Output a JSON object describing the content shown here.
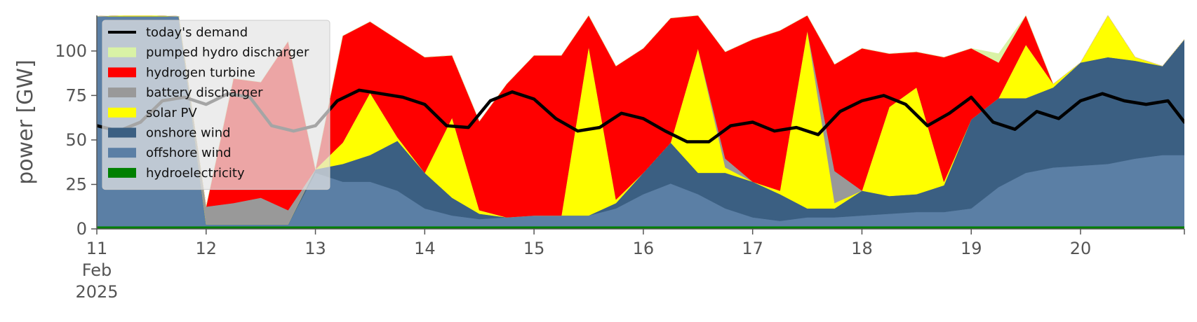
{
  "chart_data": {
    "type": "area",
    "ylabel": "power [GW]",
    "xlabel": "",
    "ylim": [
      0,
      120
    ],
    "yticks": [
      0,
      25,
      50,
      75,
      100
    ],
    "xticks": [
      {
        "day": 0,
        "label": "11"
      },
      {
        "day": 1,
        "label": "12"
      },
      {
        "day": 2,
        "label": "13"
      },
      {
        "day": 3,
        "label": "14"
      },
      {
        "day": 4,
        "label": "15"
      },
      {
        "day": 5,
        "label": "16"
      },
      {
        "day": 6,
        "label": "17"
      },
      {
        "day": 7,
        "label": "18"
      },
      {
        "day": 8,
        "label": "19"
      },
      {
        "day": 9,
        "label": "20"
      }
    ],
    "xtick_sublabels": [
      "Feb",
      "2025"
    ],
    "xlim_days": [
      0,
      9.95
    ],
    "grid": false,
    "legend_position": "top-left",
    "x": [
      0,
      0.25,
      0.5,
      0.75,
      1,
      1.25,
      1.5,
      1.75,
      2,
      2.25,
      2.5,
      2.75,
      3,
      3.25,
      3.5,
      3.75,
      4,
      4.25,
      4.5,
      4.75,
      5,
      5.25,
      5.5,
      5.75,
      6,
      6.25,
      6.5,
      6.75,
      7,
      7.25,
      7.5,
      7.75,
      8,
      8.25,
      8.5,
      8.75,
      9,
      9.25,
      9.5,
      9.75,
      9.95
    ],
    "series": [
      {
        "name": "hydroelectricity",
        "color": "#008000",
        "values": [
          1.5,
          1.5,
          1.5,
          1.5,
          1.5,
          1.5,
          1.5,
          1.5,
          1.5,
          1.5,
          1.5,
          1.5,
          1.5,
          1.5,
          1.5,
          1.5,
          1.5,
          1.5,
          1.5,
          1.5,
          1.5,
          1.5,
          1.5,
          1.5,
          1.5,
          1.5,
          1.5,
          1.5,
          1.5,
          1.5,
          1.5,
          1.5,
          1.5,
          1.5,
          1.5,
          1.5,
          1.5,
          1.5,
          1.5,
          1.5,
          1.5
        ]
      },
      {
        "name": "offshore wind",
        "color": "#5b7fa5",
        "values": [
          118,
          118,
          118,
          118,
          1,
          1,
          1,
          1,
          30,
          25,
          25,
          20,
          10,
          6,
          4,
          5,
          6,
          6,
          6,
          10,
          18,
          24,
          18,
          10,
          5,
          3,
          5,
          5,
          6,
          7,
          8,
          8,
          10,
          22,
          30,
          33,
          34,
          35,
          38,
          40,
          40
        ]
      },
      {
        "name": "onshore wind",
        "color": "#3b5f82",
        "values": [
          0,
          0,
          0,
          0,
          0,
          0,
          0,
          0,
          2,
          10,
          15,
          28,
          20,
          10,
          3,
          0,
          0,
          0,
          0,
          3,
          12,
          23,
          12,
          20,
          20,
          15,
          5,
          5,
          14,
          10,
          10,
          15,
          50,
          50,
          42,
          45,
          58,
          60,
          55,
          50,
          65
        ]
      },
      {
        "name": "solar PV",
        "color": "#ffff00",
        "values": [
          0,
          12,
          2,
          0,
          0,
          0,
          0,
          0,
          0,
          12,
          35,
          2,
          0,
          45,
          2,
          0,
          0,
          0,
          95,
          2,
          0,
          0,
          70,
          3,
          0,
          2,
          100,
          3,
          0,
          50,
          60,
          2,
          0,
          0,
          30,
          2,
          0,
          40,
          2,
          0,
          0
        ]
      },
      {
        "name": "battery discharger",
        "color": "#999999",
        "values": [
          0,
          0,
          0,
          0,
          10,
          12,
          15,
          8,
          0,
          0,
          0,
          0,
          0,
          0,
          0,
          0,
          0,
          0,
          0,
          0,
          0,
          0,
          0,
          5,
          0,
          0,
          0,
          18,
          0,
          0,
          0,
          0,
          0,
          0,
          0,
          0,
          0,
          2,
          0,
          0,
          0
        ]
      },
      {
        "name": "hydrogen turbine",
        "color": "#ff0000",
        "values": [
          0,
          0,
          0,
          0,
          0,
          70,
          65,
          95,
          0,
          60,
          40,
          55,
          65,
          35,
          50,
          75,
          90,
          90,
          25,
          75,
          70,
          70,
          20,
          60,
          80,
          90,
          10,
          60,
          80,
          30,
          20,
          70,
          40,
          20,
          20,
          0,
          0,
          0,
          0,
          0,
          0
        ]
      },
      {
        "name": "pumped hydro discharger",
        "color": "#d9f2a6",
        "values": [
          0,
          0,
          0,
          0,
          0,
          0,
          0,
          0,
          0,
          0,
          0,
          0,
          0,
          0,
          0,
          0,
          0,
          0,
          0,
          0,
          0,
          0,
          0,
          0,
          0,
          0,
          0,
          0,
          0,
          0,
          0,
          0,
          0,
          5,
          0,
          0,
          0,
          3,
          0,
          0,
          0
        ]
      }
    ],
    "line": {
      "name": "today's demand",
      "color": "#000000",
      "x": [
        0,
        0.2,
        0.4,
        0.6,
        0.8,
        1.0,
        1.2,
        1.4,
        1.6,
        1.8,
        2.0,
        2.2,
        2.4,
        2.6,
        2.8,
        3.0,
        3.2,
        3.4,
        3.6,
        3.8,
        4.0,
        4.2,
        4.4,
        4.6,
        4.8,
        5.0,
        5.2,
        5.4,
        5.6,
        5.8,
        6.0,
        6.2,
        6.4,
        6.6,
        6.8,
        7.0,
        7.2,
        7.4,
        7.6,
        7.8,
        8.0,
        8.2,
        8.4,
        8.6,
        8.8,
        9.0,
        9.2,
        9.4,
        9.6,
        9.8,
        9.95
      ],
      "values": [
        58,
        55,
        60,
        72,
        74,
        70,
        76,
        74,
        58,
        55,
        58,
        72,
        78,
        76,
        74,
        70,
        58,
        57,
        72,
        77,
        73,
        62,
        55,
        57,
        65,
        62,
        55,
        49,
        49,
        58,
        60,
        55,
        57,
        53,
        66,
        72,
        75,
        70,
        58,
        65,
        74,
        60,
        56,
        66,
        62,
        72,
        76,
        72,
        70,
        72,
        60
      ]
    }
  }
}
